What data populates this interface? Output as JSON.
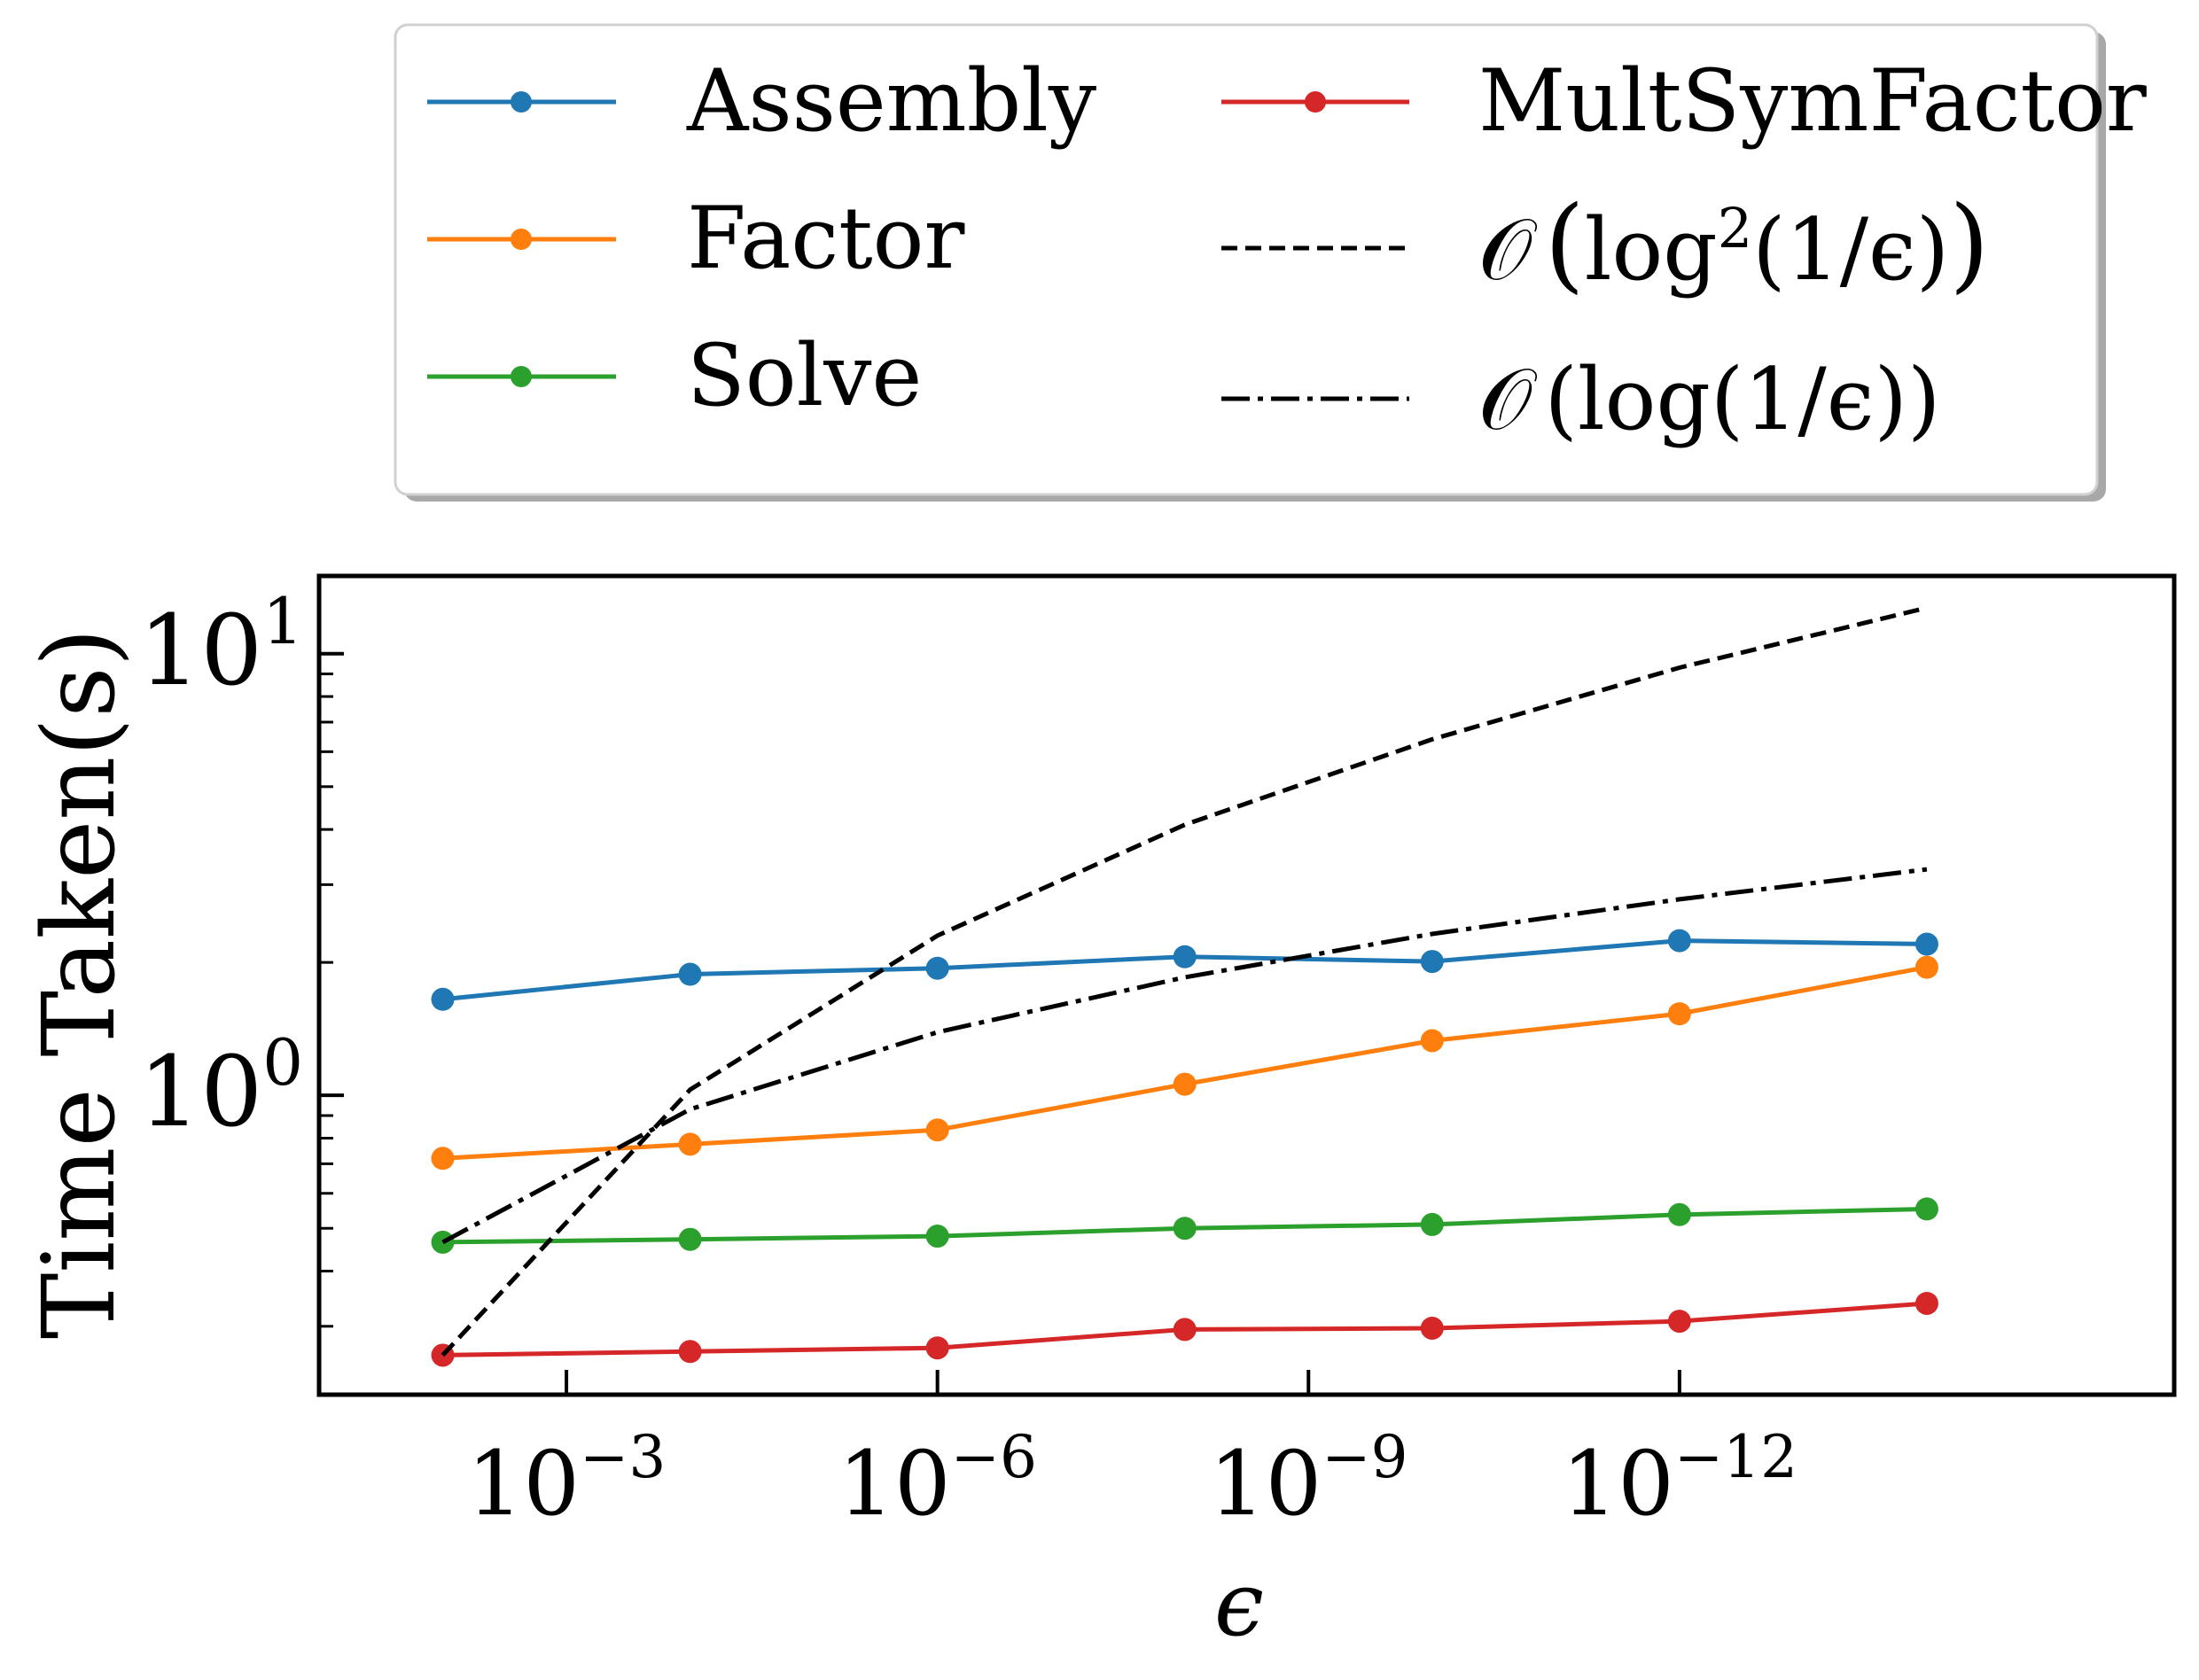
{
  "chart_data": {
    "type": "line",
    "xscale": "log",
    "yscale": "log",
    "x_axis_reversed": true,
    "xlabel": "ϵ",
    "ylabel": "Time Taken(s)",
    "xlim": [
      0.1,
      1e-16
    ],
    "ylim": [
      0.21,
      15
    ],
    "x": [
      0.01,
      0.0001,
      1e-06,
      1e-08,
      1e-10,
      1e-12,
      1e-14
    ],
    "xticks": [
      {
        "value": 0.001,
        "base": "10",
        "exp": "−3"
      },
      {
        "value": 1e-06,
        "base": "10",
        "exp": "−6"
      },
      {
        "value": 1e-09,
        "base": "10",
        "exp": "−9"
      },
      {
        "value": 1e-12,
        "base": "10",
        "exp": "−12"
      }
    ],
    "yticks": [
      {
        "value": 1,
        "base": "10",
        "exp": "0"
      },
      {
        "value": 10,
        "base": "10",
        "exp": "1"
      }
    ],
    "series": [
      {
        "name": "Assembly",
        "color": "#1f77b4",
        "style": "solid",
        "marker": true,
        "values": [
          1.65,
          1.88,
          1.94,
          2.06,
          2.01,
          2.24,
          2.2
        ]
      },
      {
        "name": "Factor",
        "color": "#ff7f0e",
        "style": "solid",
        "marker": true,
        "values": [
          0.72,
          0.775,
          0.835,
          1.06,
          1.33,
          1.53,
          1.95
        ]
      },
      {
        "name": "Solve",
        "color": "#2ca02c",
        "style": "solid",
        "marker": true,
        "values": [
          0.465,
          0.472,
          0.48,
          0.5,
          0.51,
          0.537,
          0.553
        ]
      },
      {
        "name": "MultSymFactor",
        "color": "#d62728",
        "style": "solid",
        "marker": true,
        "values": [
          0.258,
          0.263,
          0.268,
          0.295,
          0.297,
          0.308,
          0.338
        ]
      },
      {
        "name": "O(log²(1/ϵ))",
        "color": "#000000",
        "style": "dashed",
        "marker": false,
        "values": [
          0.258,
          1.03,
          2.3,
          4.1,
          6.4,
          9.3,
          12.7
        ]
      },
      {
        "name": "O(log(1/ϵ))",
        "color": "#000000",
        "style": "dashdot",
        "marker": false,
        "values": [
          0.465,
          0.93,
          1.39,
          1.85,
          2.32,
          2.78,
          3.25
        ]
      }
    ],
    "legend": {
      "placement": "above plot, two columns",
      "entries": [
        {
          "label": "Assembly"
        },
        {
          "label": "Factor"
        },
        {
          "label": "Solve"
        },
        {
          "label": "MultSymFactor"
        },
        {
          "label_prefix": "𝒪",
          "label_open": "(",
          "label_main": "log",
          "label_sup": "2",
          "label_rest": "(1/ϵ)",
          "label_close": ")"
        },
        {
          "label_prefix": "𝒪",
          "label_main": "(log(1/ϵ))"
        }
      ]
    }
  }
}
